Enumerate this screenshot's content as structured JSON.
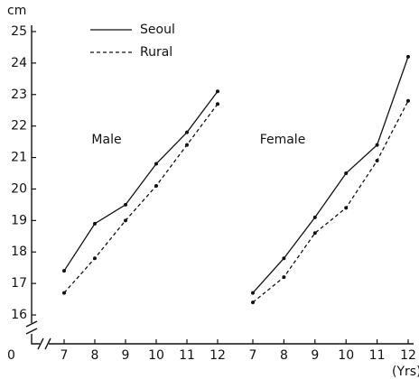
{
  "chart_data": {
    "type": "line",
    "y_label": "cm",
    "x_label": "(Yrs)",
    "origin_label": "0",
    "ylim": [
      15.7,
      25.2
    ],
    "yticks": [
      16,
      17,
      18,
      19,
      20,
      21,
      22,
      23,
      24,
      25
    ],
    "xlim": [
      7,
      12
    ],
    "xticks": [
      7,
      8,
      9,
      10,
      11,
      12
    ],
    "color": "#111111",
    "series": [
      {
        "name": "Seoul",
        "style": "solid"
      },
      {
        "name": "Rural",
        "style": "dashed"
      }
    ],
    "panels": [
      {
        "title": "Male",
        "series": [
          {
            "values": [
              17.4,
              18.9,
              19.5,
              20.8,
              21.8,
              23.1
            ]
          },
          {
            "values": [
              16.7,
              17.8,
              19.0,
              20.1,
              21.4,
              22.7
            ]
          }
        ]
      },
      {
        "title": "Female",
        "series": [
          {
            "values": [
              16.7,
              17.8,
              19.1,
              20.5,
              21.4,
              24.2
            ]
          },
          {
            "values": [
              16.4,
              17.2,
              18.6,
              19.4,
              20.9,
              22.8
            ]
          }
        ]
      }
    ]
  }
}
